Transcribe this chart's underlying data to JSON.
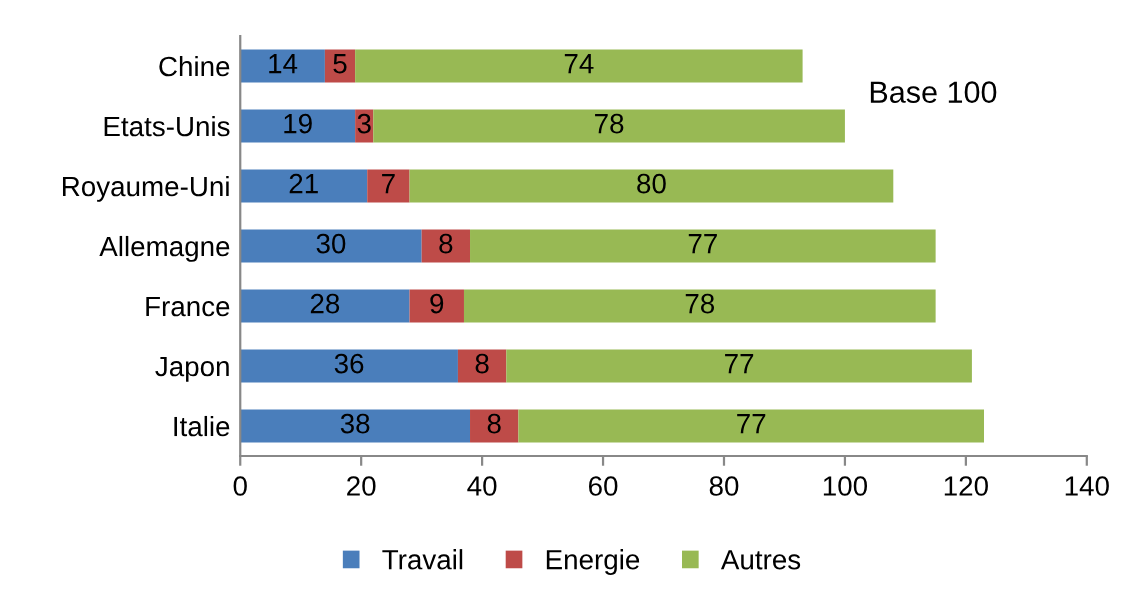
{
  "chart_data": {
    "type": "bar",
    "orientation": "horizontal",
    "stacked": true,
    "data_labels": true,
    "legend": "bottom",
    "grid": false,
    "categories": [
      "Chine",
      "Etats-Unis",
      "Royaume-Uni",
      "Allemagne",
      "France",
      "Japon",
      "Italie"
    ],
    "series": [
      {
        "name": "Travail",
        "color": "#4a7ebb",
        "values": [
          14,
          19,
          21,
          30,
          28,
          36,
          38
        ]
      },
      {
        "name": "Energie",
        "color": "#be4b48",
        "values": [
          5,
          3,
          7,
          8,
          9,
          8,
          8
        ]
      },
      {
        "name": "Autres",
        "color": "#98b954",
        "values": [
          74,
          78,
          80,
          77,
          78,
          77,
          77
        ]
      }
    ],
    "xlim": [
      0,
      140
    ],
    "xticks": [
      0,
      20,
      40,
      60,
      80,
      100,
      120,
      140
    ],
    "annotations": [
      "Base 100"
    ]
  }
}
